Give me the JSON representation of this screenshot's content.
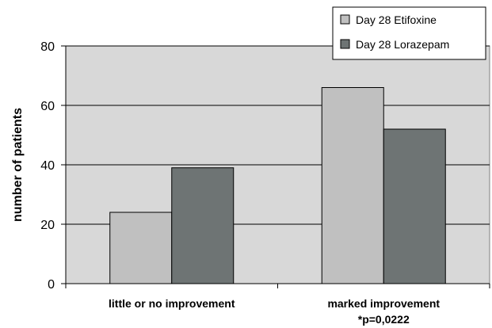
{
  "chart_data": {
    "type": "bar",
    "categories": [
      "little or no improvement",
      "marked improvement"
    ],
    "category_notes": [
      "",
      "*p=0,0222"
    ],
    "series": [
      {
        "name": "Day 28 Etifoxine",
        "values": [
          24,
          66
        ],
        "color": "#c0c0c0"
      },
      {
        "name": "Day 28 Lorazepam",
        "values": [
          39,
          52
        ],
        "color": "#6e7474"
      }
    ],
    "ylabel": "number of patients",
    "xlabel": "",
    "ylim": [
      0,
      80
    ],
    "yticks": [
      0,
      20,
      40,
      60,
      80
    ],
    "grid": true,
    "legend_position": "top-right",
    "plot_background": "#d8d8d8"
  }
}
